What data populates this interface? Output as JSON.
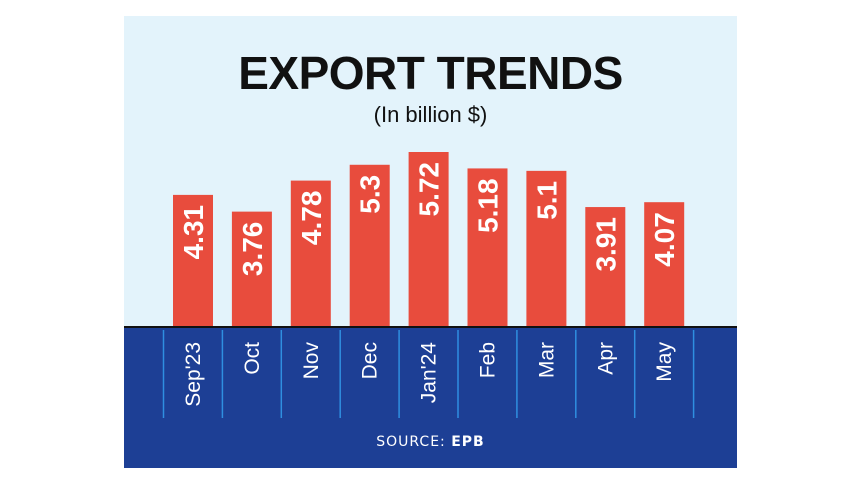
{
  "chart_data": {
    "type": "bar",
    "title": "EXPORT TRENDS",
    "subtitle": "(In billion $)",
    "categories": [
      "Sep'23",
      "Oct",
      "Nov",
      "Dec",
      "Jan'24",
      "Feb",
      "Mar",
      "Apr",
      "May"
    ],
    "values": [
      4.31,
      3.76,
      4.78,
      5.3,
      5.72,
      5.18,
      5.1,
      3.91,
      4.07
    ],
    "value_labels": [
      "4.31",
      "3.76",
      "4.78",
      "5.3",
      "5.72",
      "5.18",
      "5.1",
      "3.91",
      "4.07"
    ],
    "ylim": [
      0,
      5.72
    ],
    "grid": false,
    "legend": "none"
  },
  "source": {
    "label": "SOURCE:",
    "name": "EPB"
  },
  "colors": {
    "bar": "#e84c3d",
    "background": "#e3f3fb",
    "band": "#1d3f95",
    "divider": "#2f8fe0",
    "text": "#111111"
  }
}
